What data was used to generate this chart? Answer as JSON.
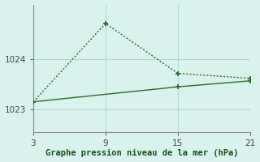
{
  "line1_x": [
    3,
    9,
    15,
    21
  ],
  "line1_y": [
    1023.15,
    1024.72,
    1023.72,
    1023.62
  ],
  "line2_x": [
    3,
    15,
    21
  ],
  "line2_y": [
    1023.15,
    1023.45,
    1023.57
  ],
  "line_color": "#2d6a2d",
  "bg_color": "#d9f2ee",
  "grid_color": "#b0d8d0",
  "spine_color": "#888888",
  "xlabel": "Graphe pression niveau de la mer (hPa)",
  "xlabel_color": "#1a4d1a",
  "xticks": [
    3,
    9,
    15,
    21
  ],
  "yticks": [
    1023,
    1024
  ],
  "xlim": [
    3,
    21
  ],
  "ylim": [
    1022.55,
    1025.1
  ],
  "tick_color": "#444444",
  "tick_fontsize": 7.5,
  "xlabel_fontsize": 7.5,
  "marker_size": 5,
  "lw": 1.0
}
